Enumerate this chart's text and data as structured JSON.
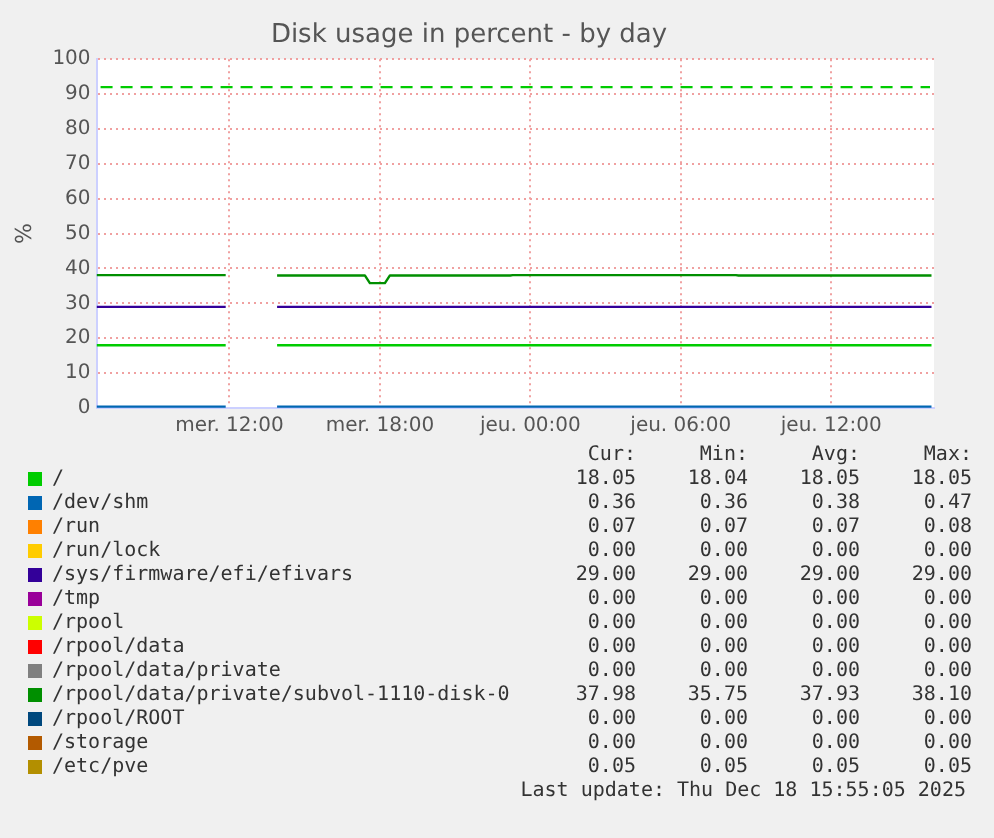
{
  "chart_data": {
    "type": "line",
    "title": "Disk usage in percent - by day",
    "ylabel": "%",
    "x": [
      "2025-12-17T06:42",
      "2025-12-17T11:51",
      "2025-12-17T12:54",
      "2025-12-17T13:54",
      "2025-12-17T17:24",
      "2025-12-17T17:36",
      "2025-12-17T18:12",
      "2025-12-17T18:24",
      "2025-12-17T23:12",
      "2025-12-17T23:18",
      "2025-12-18T08:12",
      "2025-12-18T08:18",
      "2025-12-18T16:00"
    ],
    "xlim": [
      "2025-12-17T06:42",
      "2025-12-18T16:06"
    ],
    "xticks": [
      {
        "value": "2025-12-17T12:00",
        "label": "mer. 12:00"
      },
      {
        "value": "2025-12-17T18:00",
        "label": "mer. 18:00"
      },
      {
        "value": "2025-12-18T00:00",
        "label": "jeu. 00:00"
      },
      {
        "value": "2025-12-18T06:00",
        "label": "jeu. 06:00"
      },
      {
        "value": "2025-12-18T12:00",
        "label": "jeu. 12:00"
      }
    ],
    "ylim": [
      0,
      100
    ],
    "yticks": [
      0,
      10,
      20,
      30,
      40,
      50,
      60,
      70,
      80,
      90,
      100
    ],
    "grid": true,
    "legend": "bottom",
    "marker": "none",
    "line_style": "solid",
    "ref_lines": [
      {
        "axis": "y",
        "value": 92,
        "color": "#00cc00",
        "line_style": "dashed"
      }
    ],
    "series": [
      {
        "name": "/",
        "color": "#00cc00",
        "values": [
          18,
          18,
          null,
          18,
          18,
          18,
          18,
          18,
          18,
          18,
          18,
          18,
          18
        ]
      },
      {
        "name": "/dev/shm",
        "color": "#0066b3",
        "values": [
          0.4,
          0.4,
          null,
          0.4,
          0.4,
          0.4,
          0.4,
          0.4,
          0.4,
          0.4,
          0.4,
          0.4,
          0.4
        ]
      },
      {
        "name": "/run",
        "color": "#ff8000",
        "values": [
          null,
          null,
          null,
          null,
          null,
          null,
          null,
          null,
          null,
          null,
          null,
          null,
          null
        ]
      },
      {
        "name": "/run/lock",
        "color": "#ffcc00",
        "values": [
          null,
          null,
          null,
          null,
          null,
          null,
          null,
          null,
          null,
          null,
          null,
          null,
          null
        ]
      },
      {
        "name": "/sys/firmware/efi/efivars",
        "color": "#330099",
        "values": [
          29,
          29,
          null,
          29,
          29,
          29,
          29,
          29,
          29,
          29,
          29,
          29,
          29
        ]
      },
      {
        "name": "/tmp",
        "color": "#990099",
        "values": [
          null,
          null,
          null,
          null,
          null,
          null,
          null,
          null,
          null,
          null,
          null,
          null,
          null
        ]
      },
      {
        "name": "/rpool",
        "color": "#ccff00",
        "values": [
          null,
          null,
          null,
          null,
          null,
          null,
          null,
          null,
          null,
          null,
          null,
          null,
          null
        ]
      },
      {
        "name": "/rpool/data",
        "color": "#ff0000",
        "values": [
          null,
          null,
          null,
          null,
          null,
          null,
          null,
          null,
          null,
          null,
          null,
          null,
          null
        ]
      },
      {
        "name": "/rpool/data/private",
        "color": "#808080",
        "values": [
          null,
          null,
          null,
          null,
          null,
          null,
          null,
          null,
          null,
          null,
          null,
          null,
          null
        ]
      },
      {
        "name": "/rpool/data/private/subvol-1110-disk-0",
        "color": "#008f00",
        "values": [
          38.1,
          38.1,
          null,
          38,
          38,
          35.8,
          35.8,
          38,
          38,
          38.1,
          38.1,
          38,
          38
        ]
      },
      {
        "name": "/rpool/ROOT",
        "color": "#00487d",
        "values": [
          null,
          null,
          null,
          null,
          null,
          null,
          null,
          null,
          null,
          null,
          null,
          null,
          null
        ]
      },
      {
        "name": "/storage",
        "color": "#b35a00",
        "values": [
          null,
          null,
          null,
          null,
          null,
          null,
          null,
          null,
          null,
          null,
          null,
          null,
          null
        ]
      },
      {
        "name": "/etc/pve",
        "color": "#b38f00",
        "values": [
          null,
          null,
          null,
          null,
          null,
          null,
          null,
          null,
          null,
          null,
          null,
          null,
          null
        ]
      }
    ],
    "annotations": [
      "Cur:",
      "Min:",
      "Avg:",
      "Max:",
      "18.05",
      "18.04",
      "18.05",
      "18.05",
      "0.36",
      "0.36",
      "0.38",
      "0.47",
      "0.07",
      "0.07",
      "0.07",
      "0.08",
      "0.00",
      "0.00",
      "0.00",
      "0.00",
      "29.00",
      "29.00",
      "29.00",
      "29.00",
      "0.00",
      "0.00",
      "0.00",
      "0.00",
      "0.00",
      "0.00",
      "0.00",
      "0.00",
      "0.00",
      "0.00",
      "0.00",
      "0.00",
      "0.00",
      "0.00",
      "0.00",
      "0.00",
      "37.98",
      "35.75",
      "37.93",
      "38.10",
      "0.00",
      "0.00",
      "0.00",
      "0.00",
      "0.00",
      "0.00",
      "0.00",
      "0.00",
      "0.05",
      "0.05",
      "0.05",
      "0.05",
      "Last update: Thu Dec 18 15:55:05 2025"
    ]
  }
}
